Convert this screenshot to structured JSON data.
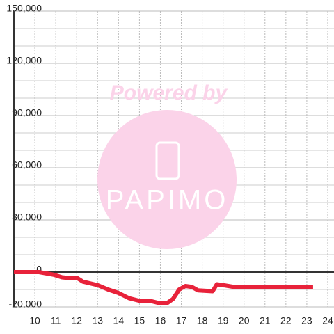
{
  "chart_data": {
    "type": "line",
    "watermark": {
      "top": "Powered by",
      "logo": "PAPIMO"
    },
    "x": [
      9.0,
      10.2,
      10.9,
      11.3,
      11.7,
      12.0,
      12.3,
      13.0,
      13.5,
      14.0,
      14.5,
      15.0,
      15.5,
      16.0,
      16.3,
      16.6,
      16.9,
      17.2,
      17.5,
      17.8,
      18.5,
      18.7,
      19.0,
      19.5,
      20.0,
      23.3
    ],
    "series": [
      {
        "color": "#e8223a",
        "values": [
          0,
          0,
          -1500,
          -3000,
          -3500,
          -3200,
          -5500,
          -7500,
          -10000,
          -12000,
          -15000,
          -16500,
          -16500,
          -18000,
          -18000,
          -15500,
          -10000,
          -8000,
          -8500,
          -10500,
          -11000,
          -7000,
          -7500,
          -8500,
          -8500,
          -8500
        ]
      }
    ],
    "xlim": [
      9,
      24.3
    ],
    "ylim": [
      -20000,
      150000
    ],
    "xticks": [
      10,
      11,
      12,
      13,
      14,
      15,
      16,
      17,
      18,
      19,
      20,
      21,
      22,
      23,
      24
    ],
    "yticks": [
      {
        "value": -20000,
        "label": "-20,000"
      },
      0,
      {
        "value": 30000,
        "label": "30,000"
      },
      {
        "value": 60000,
        "label": "60,000"
      },
      {
        "value": 90000,
        "label": "90,000"
      },
      {
        "value": 120000,
        "label": "120,000"
      },
      {
        "value": 150000,
        "label": "150,000"
      }
    ],
    "yminor": [
      -10000,
      10000,
      20000,
      40000,
      50000,
      70000,
      80000,
      100000,
      110000,
      130000,
      140000
    ],
    "grid": true
  }
}
